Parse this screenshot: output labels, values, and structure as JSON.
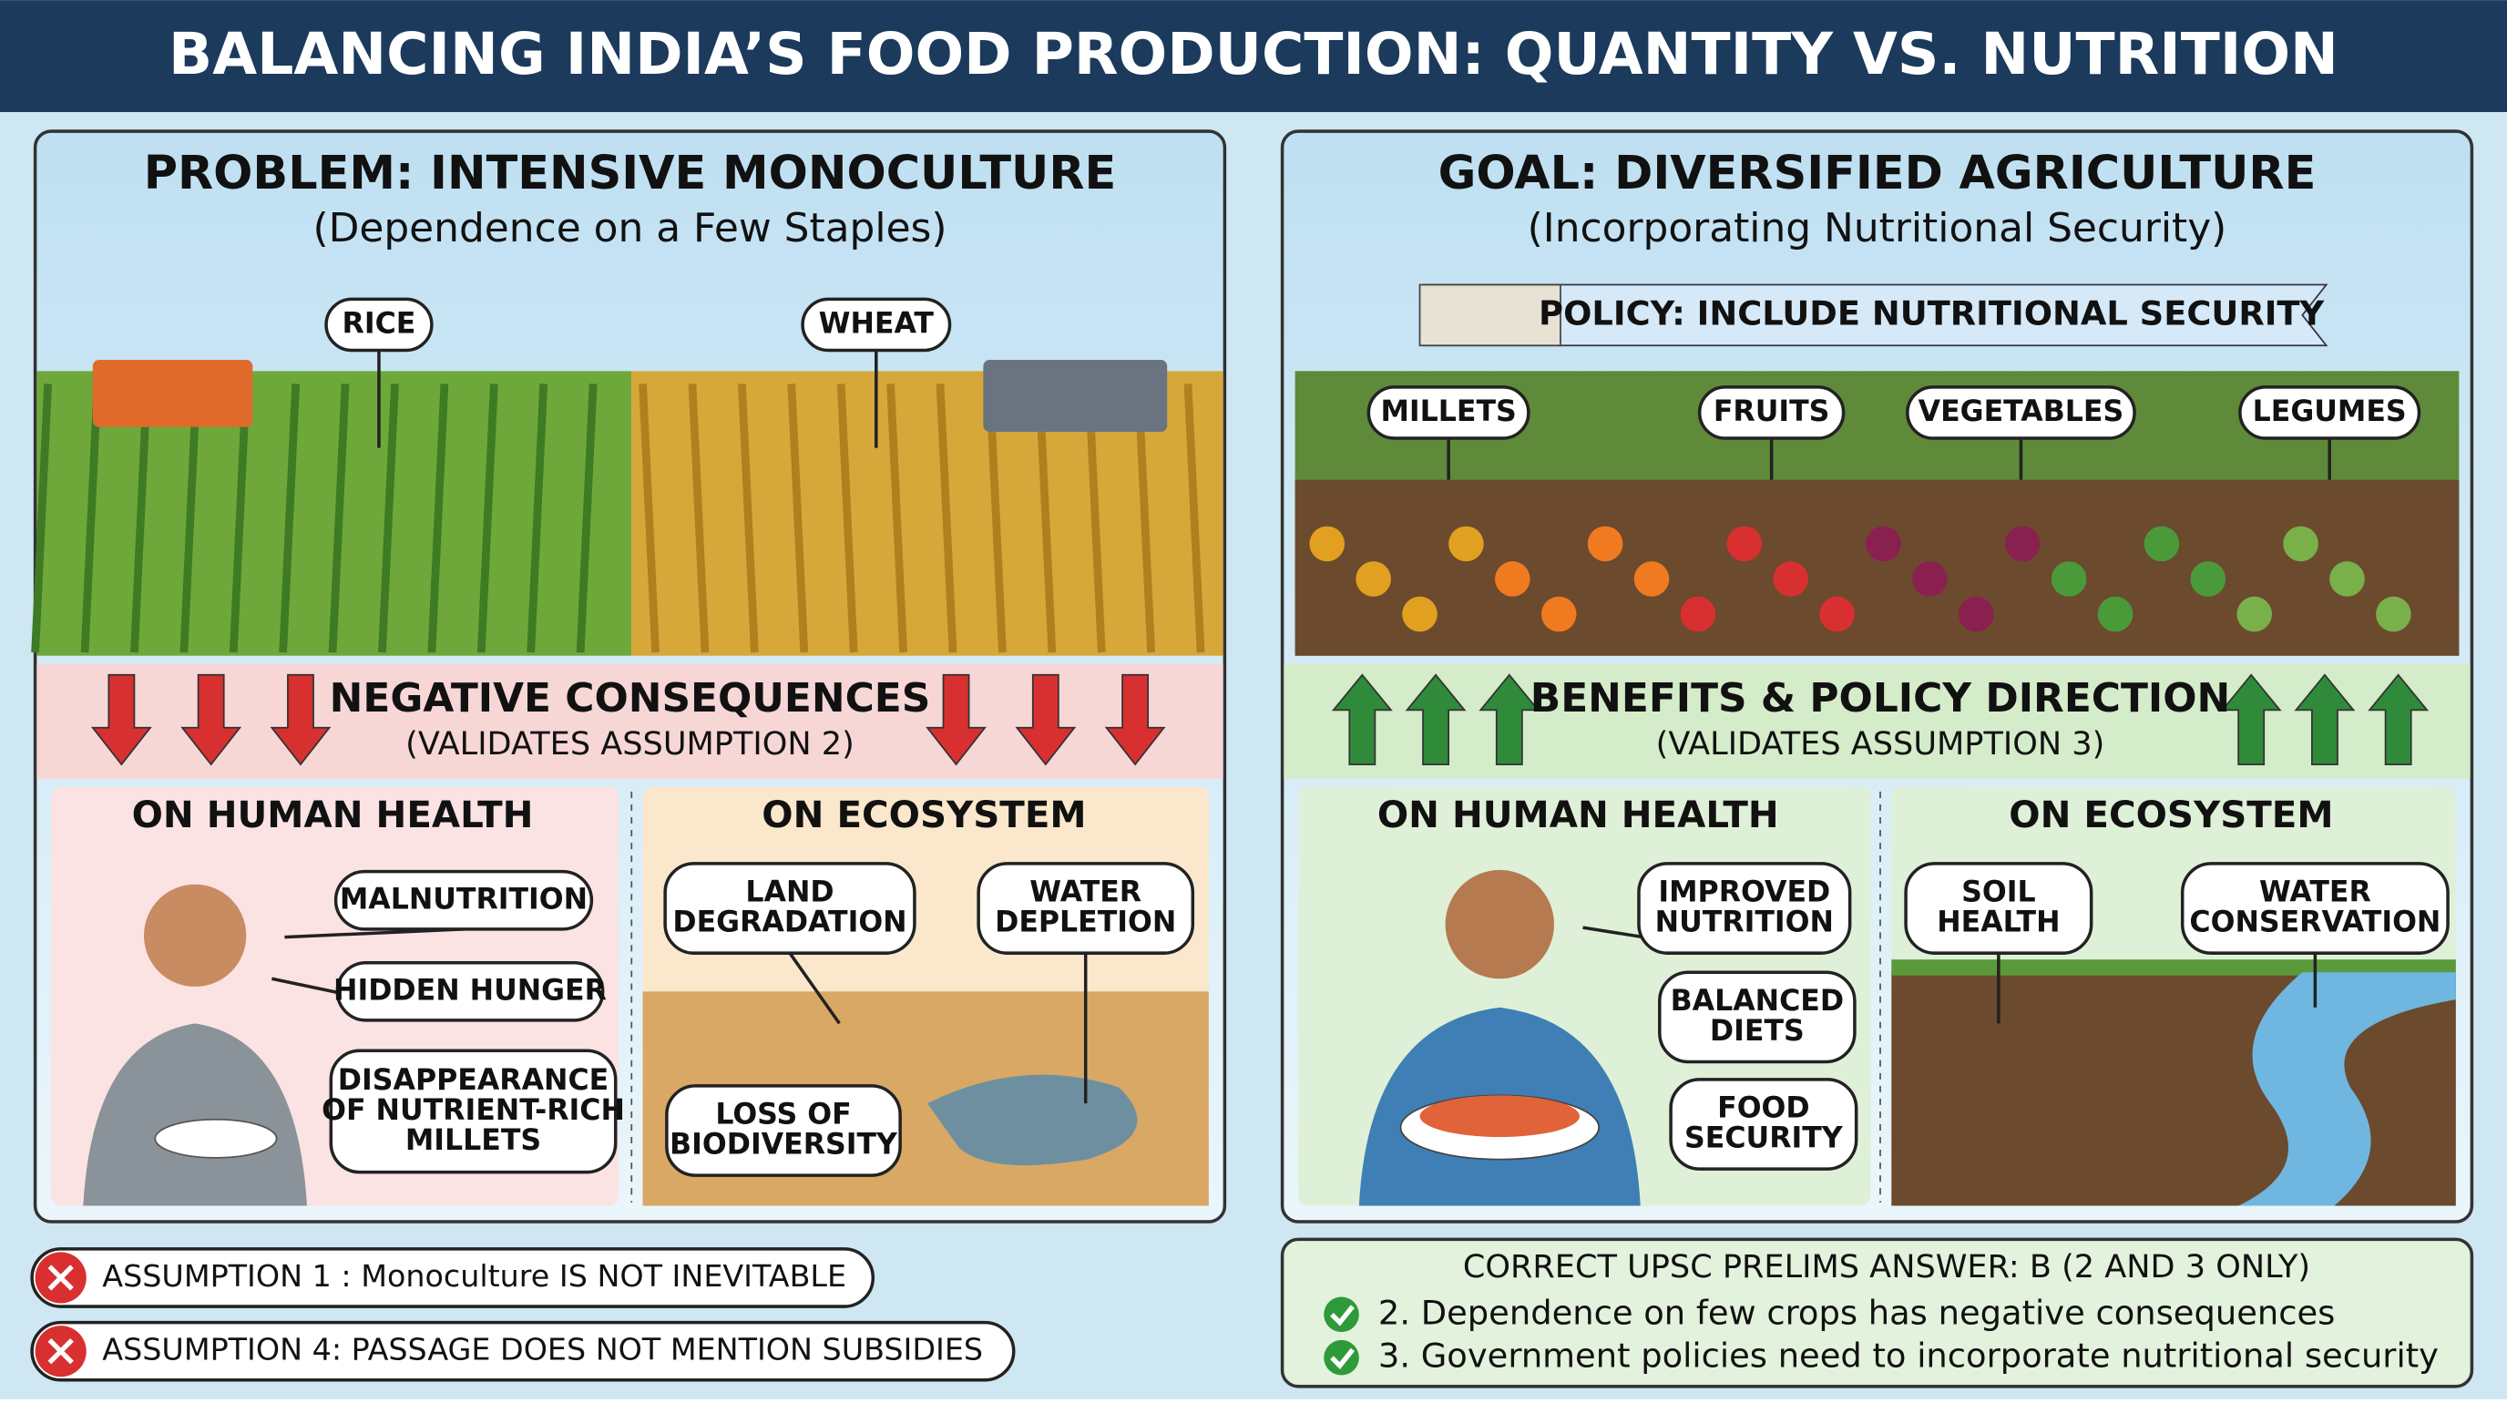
{
  "title": "BALANCING INDIA’S FOOD PRODUCTION: QUANTITY VS. NUTRITION",
  "left": {
    "heading": "PROBLEM: INTENSIVE MONOCULTURE",
    "subheading": "(Dependence on a Few Staples)",
    "crops": [
      "RICE",
      "WHEAT"
    ],
    "consequences": {
      "title": "NEGATIVE CONSEQUENCES",
      "subtitle": "(VALIDATES ASSUMPTION 2)"
    },
    "health": {
      "title": "ON HUMAN HEALTH",
      "items": [
        [
          "MALNUTRITION"
        ],
        [
          "HIDDEN HUNGER"
        ],
        [
          "DISAPPEARANCE",
          "OF NUTRIENT-RICH",
          "MILLETS"
        ]
      ]
    },
    "ecosystem": {
      "title": "ON ECOSYSTEM",
      "items": [
        [
          "LAND",
          "DEGRADATION"
        ],
        [
          "WATER",
          "DEPLETION"
        ],
        [
          "LOSS OF",
          "BIODIVERSITY"
        ]
      ]
    }
  },
  "assumptions": [
    "ASSUMPTION 1 : Monoculture IS NOT INEVITABLE",
    "ASSUMPTION 4: PASSAGE DOES NOT MENTION SUBSIDIES"
  ],
  "right": {
    "heading": "GOAL: DIVERSIFIED AGRICULTURE",
    "subheading": "(Incorporating Nutritional Security)",
    "policy": "POLICY: INCLUDE NUTRITIONAL SECURITY",
    "crops": [
      "MILLETS",
      "FRUITS",
      "VEGETABLES",
      "LEGUMES"
    ],
    "benefits": {
      "title": "BENEFITS & POLICY DIRECTION",
      "subtitle": "(VALIDATES ASSUMPTION 3)"
    },
    "health": {
      "title": "ON HUMAN HEALTH",
      "items": [
        [
          "IMPROVED",
          "NUTRITION"
        ],
        [
          "BALANCED",
          "DIETS"
        ],
        [
          "FOOD",
          "SECURITY"
        ]
      ]
    },
    "ecosystem": {
      "title": "ON ECOSYSTEM",
      "items": [
        [
          "SOIL",
          "HEALTH"
        ],
        [
          "WATER",
          "CONSERVATION"
        ]
      ]
    }
  },
  "answer": {
    "title": "CORRECT UPSC PRELIMS ANSWER: B (2 AND 3 ONLY)",
    "points": [
      "2. Dependence on few crops has negative consequences",
      "3. Government policies need to incorporate nutritional security"
    ]
  }
}
